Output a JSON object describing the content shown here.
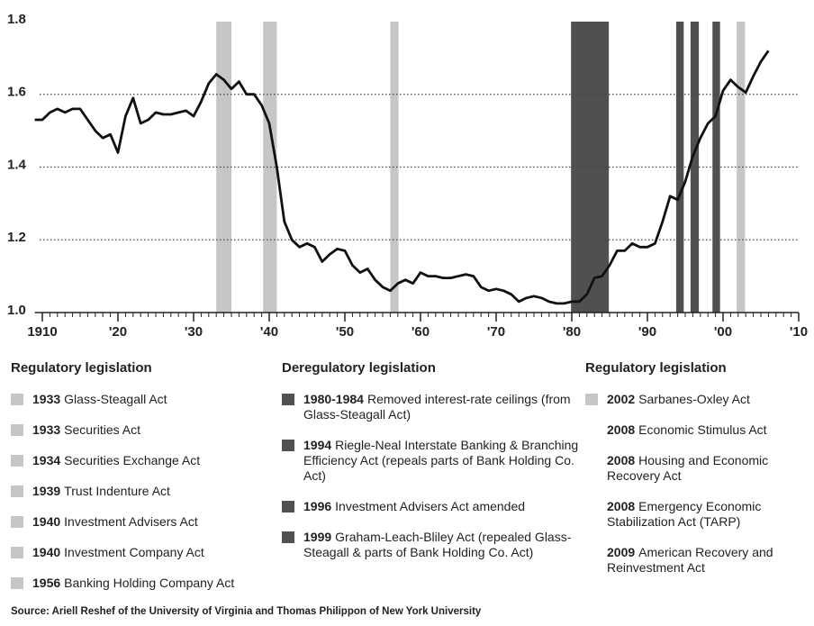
{
  "chart_data": {
    "type": "line",
    "x": [
      1909,
      1910,
      1911,
      1912,
      1913,
      1914,
      1915,
      1916,
      1917,
      1918,
      1919,
      1920,
      1921,
      1922,
      1923,
      1924,
      1925,
      1926,
      1927,
      1928,
      1929,
      1930,
      1931,
      1932,
      1933,
      1934,
      1935,
      1936,
      1937,
      1938,
      1939,
      1940,
      1941,
      1942,
      1943,
      1944,
      1945,
      1946,
      1947,
      1948,
      1949,
      1950,
      1951,
      1952,
      1953,
      1954,
      1955,
      1956,
      1957,
      1958,
      1959,
      1960,
      1961,
      1962,
      1963,
      1964,
      1965,
      1966,
      1967,
      1968,
      1969,
      1970,
      1971,
      1972,
      1973,
      1974,
      1975,
      1976,
      1977,
      1978,
      1979,
      1980,
      1981,
      1982,
      1983,
      1984,
      1985,
      1986,
      1987,
      1988,
      1989,
      1990,
      1991,
      1992,
      1993,
      1994,
      1995,
      1996,
      1997,
      1998,
      1999,
      2000,
      2001,
      2002,
      2003,
      2004,
      2005,
      2006
    ],
    "series": [
      {
        "color": "#111111",
        "values": [
          1.53,
          1.53,
          1.55,
          1.56,
          1.55,
          1.56,
          1.56,
          1.53,
          1.5,
          1.48,
          1.49,
          1.44,
          1.54,
          1.59,
          1.52,
          1.53,
          1.55,
          1.545,
          1.545,
          1.55,
          1.555,
          1.54,
          1.58,
          1.63,
          1.655,
          1.64,
          1.615,
          1.635,
          1.6,
          1.6,
          1.57,
          1.52,
          1.4,
          1.25,
          1.2,
          1.18,
          1.19,
          1.18,
          1.14,
          1.16,
          1.175,
          1.17,
          1.13,
          1.11,
          1.12,
          1.09,
          1.07,
          1.06,
          1.08,
          1.09,
          1.08,
          1.11,
          1.1,
          1.1,
          1.095,
          1.095,
          1.1,
          1.105,
          1.1,
          1.07,
          1.06,
          1.065,
          1.06,
          1.05,
          1.03,
          1.04,
          1.045,
          1.04,
          1.03,
          1.025,
          1.025,
          1.03,
          1.03,
          1.05,
          1.095,
          1.1,
          1.13,
          1.17,
          1.17,
          1.19,
          1.18,
          1.18,
          1.19,
          1.25,
          1.32,
          1.31,
          1.36,
          1.43,
          1.48,
          1.52,
          1.54,
          1.61,
          1.64,
          1.62,
          1.605,
          1.65,
          1.69,
          1.72
        ]
      }
    ],
    "bands": [
      {
        "start": 1933,
        "end": 1935,
        "color": "#c6c6c6"
      },
      {
        "start": 1939.2,
        "end": 1941,
        "color": "#c6c6c6"
      },
      {
        "start": 1956,
        "end": 1957.1,
        "color": "#c6c6c6"
      },
      {
        "start": 1979.9,
        "end": 1984.9,
        "color": "#505050"
      },
      {
        "start": 1993.8,
        "end": 1994.8,
        "color": "#505050"
      },
      {
        "start": 1995.7,
        "end": 1996.8,
        "color": "#505050"
      },
      {
        "start": 1998.6,
        "end": 1999.6,
        "color": "#505050"
      },
      {
        "start": 2001.8,
        "end": 2002.9,
        "color": "#c6c6c6"
      }
    ],
    "xlim": [
      1909,
      2010
    ],
    "ylim": [
      1,
      1.8
    ],
    "xticks": [
      {
        "value": 1910,
        "label": "1910"
      },
      {
        "value": 1920,
        "label": "'20"
      },
      {
        "value": 1930,
        "label": "'30"
      },
      {
        "value": 1940,
        "label": "'40"
      },
      {
        "value": 1950,
        "label": "'50"
      },
      {
        "value": 1960,
        "label": "'60"
      },
      {
        "value": 1970,
        "label": "'70"
      },
      {
        "value": 1980,
        "label": "'80"
      },
      {
        "value": 1990,
        "label": "'90"
      },
      {
        "value": 2000,
        "label": "'00"
      },
      {
        "value": 2010,
        "label": "'10"
      }
    ],
    "yticks": [
      {
        "value": 1,
        "label": "1.0"
      },
      1.2,
      1.4,
      1.6,
      1.8
    ],
    "grid": true,
    "legend": [
      {
        "title": "Regulatory legislation",
        "items": [
          {
            "year": "1933",
            "text": "Glass-Steagall Act",
            "color": "#c6c6c6"
          },
          {
            "year": "1933",
            "text": "Securities Act",
            "color": "#c6c6c6"
          },
          {
            "year": "1934",
            "text": "Securities Exchange Act",
            "color": "#c6c6c6"
          },
          {
            "year": "1939",
            "text": "Trust Indenture Act",
            "color": "#c6c6c6"
          },
          {
            "year": "1940",
            "text": "Investment Advisers Act",
            "color": "#c6c6c6"
          },
          {
            "year": "1940",
            "text": "Investment Company Act",
            "color": "#c6c6c6"
          },
          {
            "year": "1956",
            "text": "Banking Holding Company Act",
            "color": "#c6c6c6"
          }
        ]
      },
      {
        "title": "Deregulatory legislation",
        "items": [
          {
            "year": "1980-1984",
            "text": "Removed interest-rate ceilings (from Glass-Steagall Act)",
            "color": "#505050"
          },
          {
            "year": "1994",
            "text": "Riegle-Neal Interstate Banking & Branching Efficiency Act (repeals parts of Bank Holding Co. Act)",
            "color": "#505050"
          },
          {
            "year": "1996",
            "text": "Investment Advisers Act amended",
            "color": "#505050"
          },
          {
            "year": "1999",
            "text": "Graham-Leach-Bliley Act (repealed Glass-Steagall & parts of Bank Holding Co. Act)",
            "color": "#505050"
          }
        ]
      },
      {
        "title": "Regulatory legislation",
        "items": [
          {
            "year": "2002",
            "text": "Sarbanes-Oxley Act",
            "color": "#c6c6c6"
          },
          {
            "year": "2008",
            "text": "Economic Stimulus Act"
          },
          {
            "year": "2008",
            "text": "Housing and Economic Recovery Act"
          },
          {
            "year": "2008",
            "text": "Emergency Economic Stabilization Act (TARP)"
          },
          {
            "year": "2009",
            "text": "American Recovery and Reinvestment Act"
          }
        ]
      }
    ],
    "source": "Source: Ariell Reshef of the University of Virginia and Thomas Philippon of New York University"
  }
}
